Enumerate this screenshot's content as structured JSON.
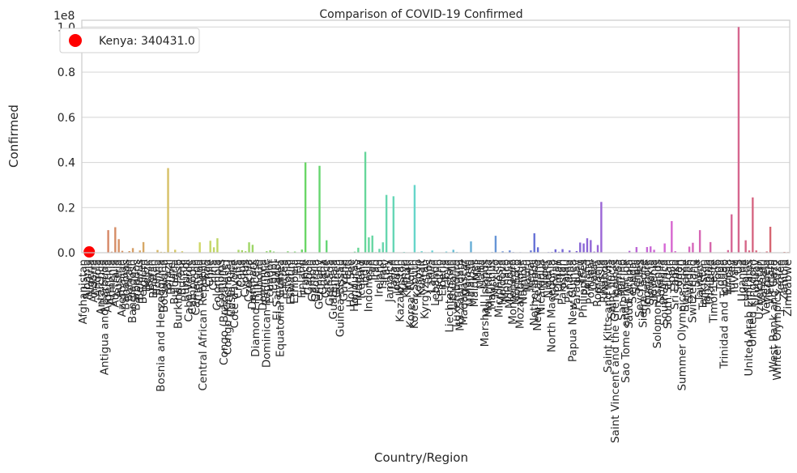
{
  "chart_data": {
    "type": "bar",
    "title": "Comparison of COVID-19 Confirmed",
    "xlabel": "Country/Region",
    "ylabel": "Confirmed",
    "y_multiplier_label": "1e8",
    "ylim": [
      0,
      1.03
    ],
    "yticks": [
      0.0,
      0.2,
      0.4,
      0.6,
      0.8,
      1.0
    ],
    "grid": "horizontal",
    "legend": {
      "placement": "top-left",
      "marker_color": "#ff0000",
      "text": "Kenya: 340431.0"
    },
    "categories": [
      "Afghanistan",
      "Albania",
      "Algeria",
      "Andorra",
      "Angola",
      "Antarctica",
      "Antigua and Barbuda",
      "Argentina",
      "Armenia",
      "Australia",
      "Austria",
      "Azerbaijan",
      "Bahamas",
      "Bahrain",
      "Bangladesh",
      "Barbados",
      "Belarus",
      "Belgium",
      "Belize",
      "Benin",
      "Bhutan",
      "Bolivia",
      "Bosnia and Herzegovina",
      "Botswana",
      "Brazil",
      "Brunei",
      "Bulgaria",
      "Burkina Faso",
      "Burma",
      "Burundi",
      "Cabo Verde",
      "Cambodia",
      "Cameroon",
      "Canada",
      "Central African Republic",
      "Chad",
      "Chile",
      "China",
      "Colombia",
      "Comoros",
      "Congo (Brazzaville)",
      "Congo (Kinshasa)",
      "Costa Rica",
      "Cote d'Ivoire",
      "Croatia",
      "Cuba",
      "Cyprus",
      "Czechia",
      "Denmark",
      "Diamond Princess",
      "Djibouti",
      "Dominica",
      "Dominican Republic",
      "Ecuador",
      "Egypt",
      "El Salvador",
      "Equatorial Guinea",
      "Eritrea",
      "Estonia",
      "Eswatini",
      "Ethiopia",
      "Fiji",
      "Finland",
      "France",
      "Gabon",
      "Gambia",
      "Georgia",
      "Germany",
      "Ghana",
      "Greece",
      "Grenada",
      "Guatemala",
      "Guinea",
      "Guinea-Bissau",
      "Guyana",
      "Haiti",
      "Holy See",
      "Honduras",
      "Hungary",
      "Iceland",
      "India",
      "Indonesia",
      "Iran",
      "Iraq",
      "Ireland",
      "Israel",
      "Italy",
      "Jamaica",
      "Japan",
      "Jordan",
      "Kazakhstan",
      "Kenya",
      "Kiribati",
      "Korea, North",
      "Korea, South",
      "Kosovo",
      "Kuwait",
      "Kyrgyzstan",
      "Laos",
      "Latvia",
      "Lebanon",
      "Lesotho",
      "Liberia",
      "Libya",
      "Liechtenstein",
      "Lithuania",
      "Luxembourg",
      "MS Zaandam",
      "Madagascar",
      "Malawi",
      "Malaysia",
      "Maldives",
      "Mali",
      "Malta",
      "Marshall Islands",
      "Mauritania",
      "Mauritius",
      "Mexico",
      "Micronesia",
      "Moldova",
      "Monaco",
      "Mongolia",
      "Montenegro",
      "Morocco",
      "Mozambique",
      "Namibia",
      "Nauru",
      "Nepal",
      "Netherlands",
      "New Zealand",
      "Nicaragua",
      "Niger",
      "Nigeria",
      "North Macedonia",
      "Norway",
      "Oman",
      "Pakistan",
      "Palau",
      "Panama",
      "Papua New Guinea",
      "Paraguay",
      "Peru",
      "Philippines",
      "Poland",
      "Portugal",
      "Qatar",
      "Romania",
      "Russia",
      "Rwanda",
      "Saint Kitts and Nevis",
      "Saint Lucia",
      "Saint Vincent and the Grenadines",
      "Samoa",
      "San Marino",
      "Sao Tome and Principe",
      "Saudi Arabia",
      "Senegal",
      "Serbia",
      "Seychelles",
      "Sierra Leone",
      "Singapore",
      "Slovakia",
      "Slovenia",
      "Solomon Islands",
      "Somalia",
      "South Africa",
      "South Sudan",
      "Spain",
      "Sri Lanka",
      "Sudan",
      "Summer Olympics 2020",
      "Suriname",
      "Sweden",
      "Switzerland",
      "Syria",
      "Taiwan*",
      "Tajikistan",
      "Tanzania",
      "Thailand",
      "Timor-Leste",
      "Togo",
      "Tonga",
      "Trinidad and Tobago",
      "Tunisia",
      "Turkey",
      "Tuvalu",
      "US",
      "Uganda",
      "Ukraine",
      "United Arab Emirates",
      "United Kingdom",
      "Uruguay",
      "Uzbekistan",
      "Vanuatu",
      "Venezuela",
      "Vietnam",
      "West Bank and Gaza",
      "Winter Olympics 2022",
      "Yemen",
      "Zambia",
      "Zimbabwe"
    ],
    "values": [
      0.0021,
      0.0033,
      0.0027,
      0.0005,
      0.001,
      1e-07,
      0.0001,
      0.1,
      0.0045,
      0.113,
      0.06,
      0.0083,
      0.0004,
      0.0072,
      0.0204,
      0.001,
      0.0099,
      0.047,
      0.0007,
      0.0003,
      0.0006,
      0.012,
      0.004,
      0.0033,
      0.375,
      0.0027,
      0.013,
      0.0002,
      0.0064,
      0.0005,
      0.0006,
      0.0014,
      0.0012,
      0.046,
      0.0002,
      0.0001,
      0.053,
      0.024,
      0.064,
      0.0001,
      0.0003,
      0.0009,
      0.0012,
      0.0009,
      0.0127,
      0.011,
      0.0066,
      0.046,
      0.035,
      7e-06,
      0.0002,
      0.0001,
      0.0066,
      0.0107,
      0.0052,
      0.002,
      0.0002,
      0.0001,
      0.0061,
      0.0007,
      0.005,
      0.0007,
      0.014,
      0.4,
      0.0005,
      0.0001,
      0.0018,
      0.385,
      0.0017,
      0.055,
      0.0002,
      0.0013,
      0.0004,
      0.0001,
      0.0007,
      0.0003,
      3e-08,
      0.0047,
      0.022,
      0.002,
      0.447,
      0.068,
      0.076,
      0.0025,
      0.017,
      0.046,
      0.256,
      0.0016,
      0.25,
      0.0017,
      0.0015,
      0.0034,
      5e-05,
      1e-06,
      0.3,
      0.0023,
      0.0066,
      0.0021,
      0.002,
      0.0097,
      0.0012,
      0.0003,
      0.0001,
      0.005,
      0.0002,
      0.013,
      0.0033,
      9e-06,
      0.0007,
      0.0009,
      0.05,
      0.0019,
      0.0003,
      0.0012,
      0.0002,
      0.0006,
      0.003,
      0.075,
      0.0003,
      0.006,
      0.0002,
      0.01,
      0.0028,
      0.0013,
      0.0023,
      0.0017,
      5e-05,
      0.01,
      0.086,
      0.024,
      0.0002,
      0.0001,
      0.0027,
      0.0034,
      0.015,
      0.004,
      0.0158,
      5e-05,
      0.01,
      0.0005,
      0.0073,
      0.045,
      0.041,
      0.064,
      0.056,
      0.0049,
      0.034,
      0.225,
      0.0013,
      0.0001,
      0.0003,
      0.0001,
      0.0002,
      0.0002,
      0.0001,
      0.0083,
      0.0009,
      0.025,
      0.0005,
      0.0001,
      0.025,
      0.028,
      0.013,
      0.0002,
      0.0003,
      0.041,
      0.0002,
      0.14,
      0.0067,
      0.0006,
      8.7e-07,
      0.0008,
      0.027,
      0.044,
      0.0006,
      0.1,
      0.0002,
      0.0004,
      0.047,
      0.0002,
      0.0004,
      2e-05,
      0.0019,
      0.0115,
      0.17,
      2e-05,
      1.0,
      0.0017,
      0.055,
      0.01,
      0.245,
      0.01,
      0.0025,
      0.0001,
      0.0055,
      0.115,
      0.0007,
      5e-06,
      0.0001,
      0.0035,
      0.0026
    ]
  }
}
